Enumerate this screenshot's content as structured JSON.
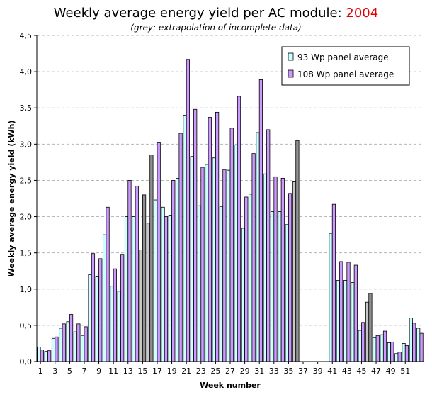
{
  "chart_data": {
    "type": "bar",
    "title": "Weekly average energy yield per AC module:",
    "title_year": "2004",
    "subtitle": "(grey: extrapolation of incomplete data)",
    "xlabel": "Week number",
    "ylabel": "Weekly average energy yield (kWh)",
    "ylim": [
      0,
      4.5
    ],
    "y_ticks": [
      "0,0",
      "0,5",
      "1,0",
      "1,5",
      "2,0",
      "2,5",
      "3,0",
      "3,5",
      "4,0",
      "4,5"
    ],
    "x_tick_labels": [
      "1",
      "3",
      "5",
      "7",
      "9",
      "11",
      "13",
      "15",
      "17",
      "19",
      "21",
      "23",
      "25",
      "27",
      "29",
      "31",
      "33",
      "35",
      "37",
      "39",
      "41",
      "43",
      "45",
      "47",
      "49",
      "51"
    ],
    "grid": true,
    "legend_position": "top-right",
    "categories": [
      1,
      2,
      3,
      4,
      5,
      6,
      7,
      8,
      9,
      10,
      11,
      12,
      13,
      14,
      15,
      16,
      17,
      18,
      19,
      20,
      21,
      22,
      23,
      24,
      25,
      26,
      27,
      28,
      29,
      30,
      31,
      32,
      33,
      34,
      35,
      36,
      37,
      38,
      39,
      40,
      41,
      42,
      43,
      44,
      45,
      46,
      47,
      48,
      49,
      50,
      51,
      52,
      53
    ],
    "extrapolated_weeks": [
      15,
      16,
      36,
      46
    ],
    "series": [
      {
        "name": "93 Wp panel average",
        "color": "#ccffff",
        "values": [
          0.2,
          0.14,
          0.32,
          0.46,
          0.55,
          0.41,
          0.36,
          1.2,
          1.17,
          1.75,
          1.04,
          0.97,
          2.0,
          2.0,
          1.54,
          1.91,
          2.23,
          2.13,
          2.02,
          2.53,
          3.4,
          2.83,
          2.15,
          2.72,
          2.81,
          2.14,
          2.64,
          2.99,
          1.84,
          2.31,
          3.16,
          2.59,
          2.07,
          2.07,
          1.89,
          2.48,
          null,
          null,
          null,
          null,
          1.77,
          1.12,
          1.12,
          1.09,
          0.43,
          0.82,
          0.33,
          0.37,
          0.26,
          0.11,
          0.25,
          0.6,
          0.46
        ]
      },
      {
        "name": "108 Wp panel average",
        "color": "#cc99ff",
        "values": [
          0.16,
          0.15,
          0.34,
          0.52,
          0.65,
          0.52,
          0.48,
          1.49,
          1.42,
          2.13,
          1.28,
          1.48,
          2.5,
          2.42,
          2.3,
          2.85,
          3.02,
          2.0,
          2.5,
          3.15,
          4.17,
          3.48,
          2.68,
          3.37,
          3.44,
          2.65,
          3.22,
          3.66,
          2.27,
          2.87,
          3.89,
          3.2,
          2.55,
          2.53,
          2.32,
          3.05,
          null,
          null,
          null,
          null,
          2.17,
          1.38,
          1.37,
          1.33,
          0.54,
          0.94,
          0.36,
          0.42,
          0.27,
          0.13,
          0.22,
          0.53,
          0.39
        ]
      }
    ]
  }
}
